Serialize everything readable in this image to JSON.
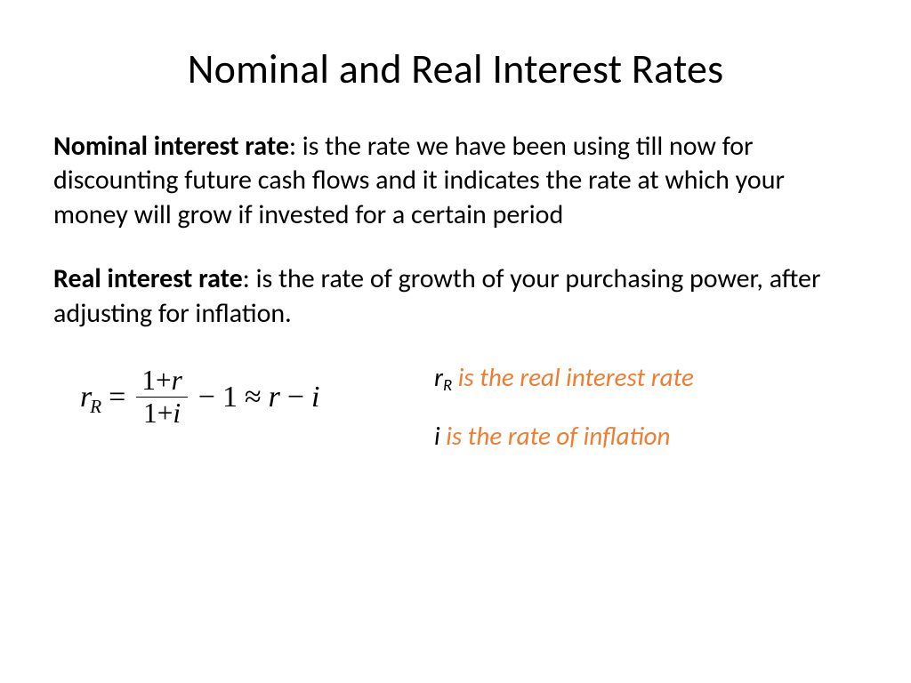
{
  "title": "Nominal and Real Interest Rates",
  "para1": {
    "term": "Nominal interest rate",
    "text": ": is the rate we have been using till now for discounting future cash flows and it indicates the rate at which your money will grow if invested for a certain period"
  },
  "para2": {
    "term": "Real interest rate",
    "text": ": is the rate of growth of your purchasing power, after adjusting for inflation."
  },
  "formula": {
    "lhs_var": "r",
    "lhs_sub": "R",
    "eq": "=",
    "frac_num_a": "1",
    "frac_num_op": "+",
    "frac_num_b": "r",
    "frac_den_a": "1",
    "frac_den_op": "+",
    "frac_den_b": "i",
    "minus": "−",
    "one": "1",
    "approx": "≈",
    "rhs_a": "r",
    "rhs_op": "−",
    "rhs_b": "i"
  },
  "legend": {
    "line1_sym": "r",
    "line1_sub": "R",
    "line1_text": " is the real interest rate",
    "line2_sym": "i",
    "line2_text": " is the rate of inflation"
  },
  "colors": {
    "accent": "#ed7d31",
    "text": "#000000",
    "background": "#ffffff"
  }
}
